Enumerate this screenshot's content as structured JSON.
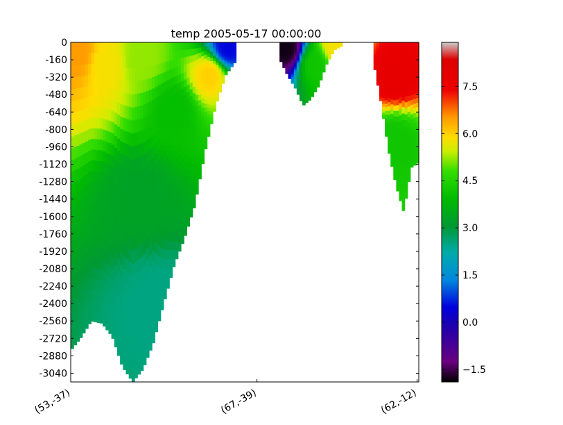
{
  "chart_data": {
    "type": "heatmap",
    "title": "temp 2005-05-17 00:00:00",
    "xlabel": "",
    "ylabel": "",
    "x_tick_labels": [
      "(53,-37)",
      "(67,-39)",
      "(62,-12)"
    ],
    "y_ticks": [
      0,
      -160,
      -320,
      -480,
      -640,
      -800,
      -960,
      -1120,
      -1280,
      -1440,
      -1600,
      -1760,
      -1920,
      -2080,
      -2240,
      -2400,
      -2560,
      -2720,
      -2880,
      -3040
    ],
    "ylim": [
      -3120,
      0
    ],
    "colorbar": {
      "ticks": [
        "−1.5",
        "0.0",
        "1.5",
        "3.0",
        "4.5",
        "6.0",
        "7.5"
      ],
      "tick_values": [
        -1.5,
        0.0,
        1.5,
        3.0,
        4.5,
        6.0,
        7.5
      ],
      "range": [
        -1.9,
        8.9
      ]
    },
    "profile_x": [
      0,
      0.04,
      0.08,
      0.12,
      0.16,
      0.2,
      0.24,
      0.28,
      0.32,
      0.36,
      0.4,
      0.44,
      0.48,
      0.52,
      0.56,
      0.6,
      0.64,
      0.68,
      0.72,
      0.76,
      0.8,
      0.84,
      0.88,
      0.92,
      0.96,
      1.0
    ],
    "segments": [
      {
        "x_range": [
          0.0,
          0.475
        ],
        "bottom_depth": [
          -2830,
          -2710,
          -2560,
          -2580,
          -2700,
          -2980,
          -3120,
          -3000,
          -2760,
          -2400,
          -2050,
          -1800,
          -1500,
          -1000,
          -590,
          -300,
          -170
        ]
      },
      {
        "x_range": [
          0.6,
          0.78
        ],
        "bottom_depth": [
          -150,
          -300,
          -420,
          -580,
          -520,
          -400,
          -200,
          -70,
          -30
        ]
      },
      {
        "x_range": [
          0.87,
          1.0
        ],
        "bottom_depth": [
          -180,
          -560,
          -1000,
          -1320,
          -1560,
          -1150,
          -1100
        ]
      }
    ],
    "temperature_samples": [
      {
        "x": 0.02,
        "depth": -100,
        "temp": 6.5
      },
      {
        "x": 0.1,
        "depth": -200,
        "temp": 5.8
      },
      {
        "x": 0.2,
        "depth": -150,
        "temp": 5.2
      },
      {
        "x": 0.3,
        "depth": -600,
        "temp": 4.0
      },
      {
        "x": 0.2,
        "depth": -1400,
        "temp": 3.3
      },
      {
        "x": 0.25,
        "depth": -2400,
        "temp": 2.5
      },
      {
        "x": 0.4,
        "depth": -300,
        "temp": 6.0
      },
      {
        "x": 0.45,
        "depth": -50,
        "temp": 0.5
      },
      {
        "x": 0.62,
        "depth": -60,
        "temp": -1.8
      },
      {
        "x": 0.7,
        "depth": -200,
        "temp": 4.2
      },
      {
        "x": 0.76,
        "depth": -40,
        "temp": 5.8
      },
      {
        "x": 0.93,
        "depth": -300,
        "temp": 7.8
      },
      {
        "x": 0.93,
        "depth": -900,
        "temp": 4.2
      }
    ]
  }
}
